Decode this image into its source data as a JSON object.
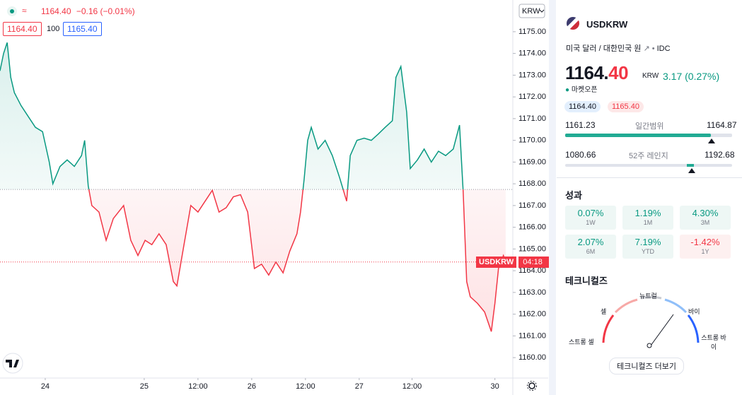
{
  "chart_data": {
    "type": "baseline",
    "legend": {
      "price": "1164.40",
      "change": "−0.16 (−0.01%)"
    },
    "bid": "1164.40",
    "qty": "100",
    "ask": "1165.40",
    "symbol_tag": "USDKRW",
    "countdown": "04:18",
    "currency": "KRW",
    "x": [
      -10.1,
      -9.3,
      -8.5,
      -7.7,
      -6.9,
      -5.4,
      -3.8,
      -2.2,
      -0.6,
      0.9,
      1.7,
      3.3,
      4.9,
      6.5,
      8.1,
      8.8,
      9.6,
      10.4,
      12.0,
      13.6,
      15.2,
      17.5,
      19.1,
      20.7,
      22.3,
      23.8,
      25.4,
      27.0,
      28.6,
      29.4,
      30.9,
      32.5,
      34.1,
      35.7,
      37.3,
      38.8,
      40.4,
      42.0,
      43.6,
      45.2,
      46.7,
      48.3,
      49.9,
      51.5,
      53.1,
      54.6,
      56.2,
      57.0,
      57.8,
      58.6,
      59.4,
      60.9,
      62.5,
      64.1,
      65.7,
      67.3,
      68.1,
      69.6,
      71.2,
      72.8,
      74.4,
      75.9,
      77.5,
      78.3,
      79.4,
      80.7,
      81.5,
      83.1,
      84.6,
      86.2,
      87.8,
      89.4,
      91.1,
      92.5,
      93.3,
      94.1,
      94.9,
      96.5,
      98.1,
      99.6,
      100.4,
      101.2,
      102.3,
      102.8
    ],
    "values": [
      1173.2,
      1174.0,
      1174.5,
      1172.9,
      1172.2,
      1171.6,
      1171.1,
      1170.6,
      1170.4,
      1169.0,
      1168.0,
      1168.8,
      1169.1,
      1168.8,
      1169.3,
      1170.0,
      1167.9,
      1167.0,
      1166.7,
      1165.4,
      1166.4,
      1167.0,
      1165.4,
      1164.7,
      1165.4,
      1165.2,
      1165.7,
      1165.2,
      1163.5,
      1163.3,
      1165.1,
      1167.0,
      1166.7,
      1167.2,
      1167.7,
      1166.7,
      1166.9,
      1167.4,
      1167.5,
      1166.7,
      1164.1,
      1164.3,
      1163.8,
      1164.4,
      1163.9,
      1164.9,
      1165.7,
      1166.7,
      1168.2,
      1170.0,
      1170.6,
      1169.6,
      1170.0,
      1169.3,
      1168.3,
      1167.2,
      1169.3,
      1170.0,
      1170.1,
      1170.0,
      1170.3,
      1170.6,
      1170.9,
      1172.9,
      1173.4,
      1171.3,
      1168.7,
      1169.1,
      1169.6,
      1169.0,
      1169.5,
      1169.3,
      1169.6,
      1170.7,
      1167.7,
      1163.5,
      1162.8,
      1162.5,
      1162.1,
      1161.2,
      1162.5,
      1164.1,
      1164.7,
      1164.4
    ],
    "baseline": 1167.74,
    "last": 1164.4,
    "up_color": "#089981",
    "down_color": "#f23645",
    "xlim": [
      -10.1,
      104.4
    ],
    "ylim": [
      1159.06,
      1176.46
    ],
    "xticks": [
      {
        "value": 0,
        "label": "24"
      },
      {
        "value": 22.1,
        "label": "25"
      },
      {
        "value": 34.1,
        "label": "12:00"
      },
      {
        "value": 46.1,
        "label": "26"
      },
      {
        "value": 58.1,
        "label": "12:00"
      },
      {
        "value": 70.1,
        "label": "27"
      },
      {
        "value": 81.9,
        "label": "12:00"
      },
      {
        "value": 100.4,
        "label": "30"
      }
    ],
    "yticks": [
      {
        "value": 1160,
        "label": "1160.00"
      },
      {
        "value": 1161,
        "label": "1161.00"
      },
      {
        "value": 1162,
        "label": "1162.00"
      },
      {
        "value": 1163,
        "label": "1163.00"
      },
      {
        "value": 1164,
        "label": "1164.00"
      },
      {
        "value": 1165,
        "label": "1165.00"
      },
      {
        "value": 1166,
        "label": "1166.00"
      },
      {
        "value": 1167,
        "label": "1167.00"
      },
      {
        "value": 1168,
        "label": "1168.00"
      },
      {
        "value": 1169,
        "label": "1169.00"
      },
      {
        "value": 1170,
        "label": "1170.00"
      },
      {
        "value": 1171,
        "label": "1171.00"
      },
      {
        "value": 1172,
        "label": "1172.00"
      },
      {
        "value": 1173,
        "label": "1173.00"
      },
      {
        "value": 1174,
        "label": "1174.00"
      },
      {
        "value": 1175,
        "label": "1175.00"
      }
    ]
  },
  "panel": {
    "symbol": "USDKRW",
    "description": "미국 달러 / 대한민국 원",
    "exchange": "IDC",
    "price_int": "1164.",
    "price_dec": "40",
    "currency": "KRW",
    "change": "3.17 (0.27%)",
    "status": "마켓오픈",
    "bid": "1164.40",
    "ask": "1165.40",
    "day_range": {
      "low": "1161.23",
      "label": "일간범위",
      "high": "1164.87"
    },
    "week52_range": {
      "low": "1080.66",
      "label": "52주 레인지",
      "high": "1192.68"
    },
    "performance": {
      "title": "성과",
      "tiles": [
        {
          "value": "0.07%",
          "period": "1W"
        },
        {
          "value": "1.19%",
          "period": "1M"
        },
        {
          "value": "4.30%",
          "period": "3M"
        },
        {
          "value": "2.07%",
          "period": "6M"
        },
        {
          "value": "7.19%",
          "period": "YTD"
        },
        {
          "value": "-1.42%",
          "period": "1Y"
        }
      ]
    },
    "technicals": {
      "title": "테크니컬즈",
      "strong_sell": "스트롱 셀",
      "sell": "셀",
      "neutral": "뉴트럴",
      "buy": "바이",
      "strong_buy_1": "스트롱 바",
      "strong_buy_2": "이",
      "button": "테크니컬즈 더보기"
    }
  }
}
